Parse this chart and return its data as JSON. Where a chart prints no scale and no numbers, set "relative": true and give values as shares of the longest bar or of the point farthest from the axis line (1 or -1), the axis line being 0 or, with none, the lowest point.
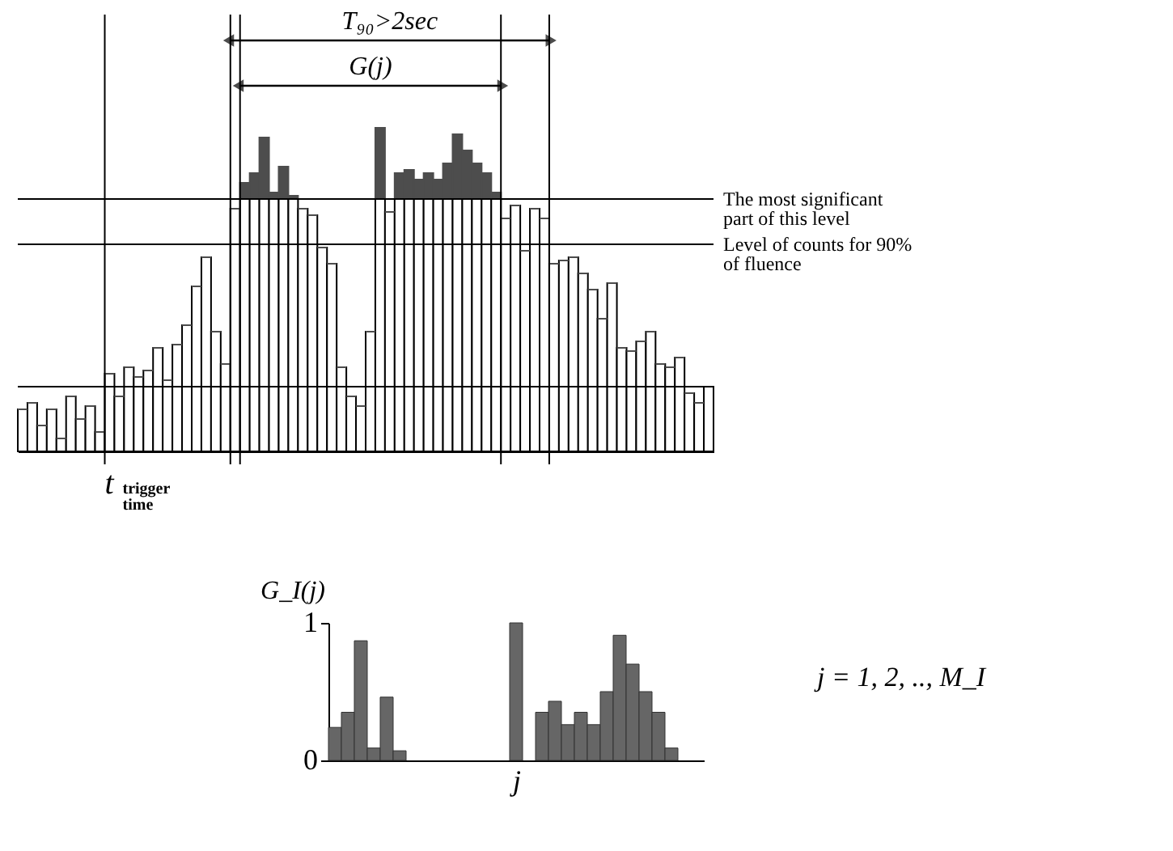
{
  "chart_data": [
    {
      "type": "bar",
      "relative": true,
      "stacked": true,
      "tick_labels": false,
      "grid": false,
      "categories": [
        null,
        null,
        null,
        null,
        null,
        null,
        null,
        null,
        null,
        null,
        null,
        null,
        null,
        null,
        null,
        null,
        null,
        null,
        null,
        null,
        null,
        null,
        null,
        null,
        null,
        null,
        null,
        null,
        null,
        null,
        null,
        null,
        null,
        null,
        null,
        null,
        null,
        null,
        null,
        null,
        null,
        null,
        null,
        null,
        null,
        null,
        null,
        null,
        null,
        null,
        null,
        null,
        null,
        null,
        null,
        null,
        null,
        null,
        null,
        null,
        null,
        null,
        null,
        null,
        null,
        null,
        null,
        null,
        null,
        null,
        null,
        null
      ],
      "series": [
        {
          "color": "#ffffff",
          "values": [
            0.13,
            0.15,
            0.08,
            0.13,
            0.04,
            0.17,
            0.1,
            0.14,
            0.06,
            0.24,
            0.17,
            0.26,
            0.23,
            0.25,
            0.32,
            0.22,
            0.33,
            0.39,
            0.51,
            0.6,
            0.37,
            0.27,
            0.75,
            0.78,
            0.78,
            0.78,
            0.78,
            0.78,
            0.78,
            0.75,
            0.73,
            0.63,
            0.58,
            0.26,
            0.17,
            0.14,
            0.37,
            0.78,
            0.74,
            0.78,
            0.78,
            0.78,
            0.78,
            0.78,
            0.78,
            0.78,
            0.78,
            0.78,
            0.78,
            0.78,
            0.72,
            0.76,
            0.62,
            0.75,
            0.72,
            0.58,
            0.59,
            0.6,
            0.55,
            0.5,
            0.41,
            0.52,
            0.32,
            0.31,
            0.34,
            0.37,
            0.27,
            0.26,
            0.29,
            0.18,
            0.15,
            0.2
          ]
        },
        {
          "color": "#4d4d4d",
          "values": [
            0,
            0,
            0,
            0,
            0,
            0,
            0,
            0,
            0,
            0,
            0,
            0,
            0,
            0,
            0,
            0,
            0,
            0,
            0,
            0,
            0,
            0,
            0,
            0.05,
            0.08,
            0.19,
            0.02,
            0.1,
            0.01,
            0,
            0,
            0,
            0,
            0,
            0,
            0,
            0,
            0.22,
            0,
            0.08,
            0.09,
            0.06,
            0.08,
            0.06,
            0.11,
            0.2,
            0.15,
            0.11,
            0.08,
            0.02,
            0,
            0,
            0,
            0,
            0,
            0,
            0,
            0,
            0,
            0,
            0,
            0,
            0,
            0,
            0,
            0,
            0,
            0,
            0,
            0,
            0,
            0
          ]
        }
      ],
      "ref_lines": [
        {
          "axis": "y",
          "value": 0.78,
          "label": "The most significant part of this level"
        },
        {
          "axis": "y",
          "value": 0.64,
          "label": "Level of counts for 90% of fluence"
        },
        {
          "axis": "y",
          "value": 0.2,
          "label": null
        }
      ],
      "annotations": [
        "T₉₀>2sec",
        "G(j)",
        "t trigger time"
      ]
    },
    {
      "type": "bar",
      "ylabel": "G_I(j)",
      "xlabel": "j",
      "ylim": [
        0,
        1
      ],
      "yticks": [
        0,
        1
      ],
      "grid": false,
      "categories": [
        null,
        null,
        null,
        null,
        null,
        null,
        null,
        null,
        null,
        null,
        null,
        null,
        null,
        null,
        null,
        null,
        null,
        null,
        null,
        null,
        null,
        null,
        null,
        null,
        null,
        null,
        null,
        null,
        null
      ],
      "series": [
        {
          "color": "#666666",
          "values": [
            0.24,
            0.35,
            0.87,
            0.09,
            0.46,
            0.07,
            null,
            null,
            null,
            null,
            null,
            null,
            null,
            null,
            1.0,
            null,
            0.35,
            0.43,
            0.26,
            0.35,
            0.26,
            0.5,
            0.91,
            0.7,
            0.5,
            0.35,
            0.09,
            null,
            null
          ]
        }
      ],
      "annotations": [
        "j = 1, 2, .., M_I"
      ]
    }
  ]
}
